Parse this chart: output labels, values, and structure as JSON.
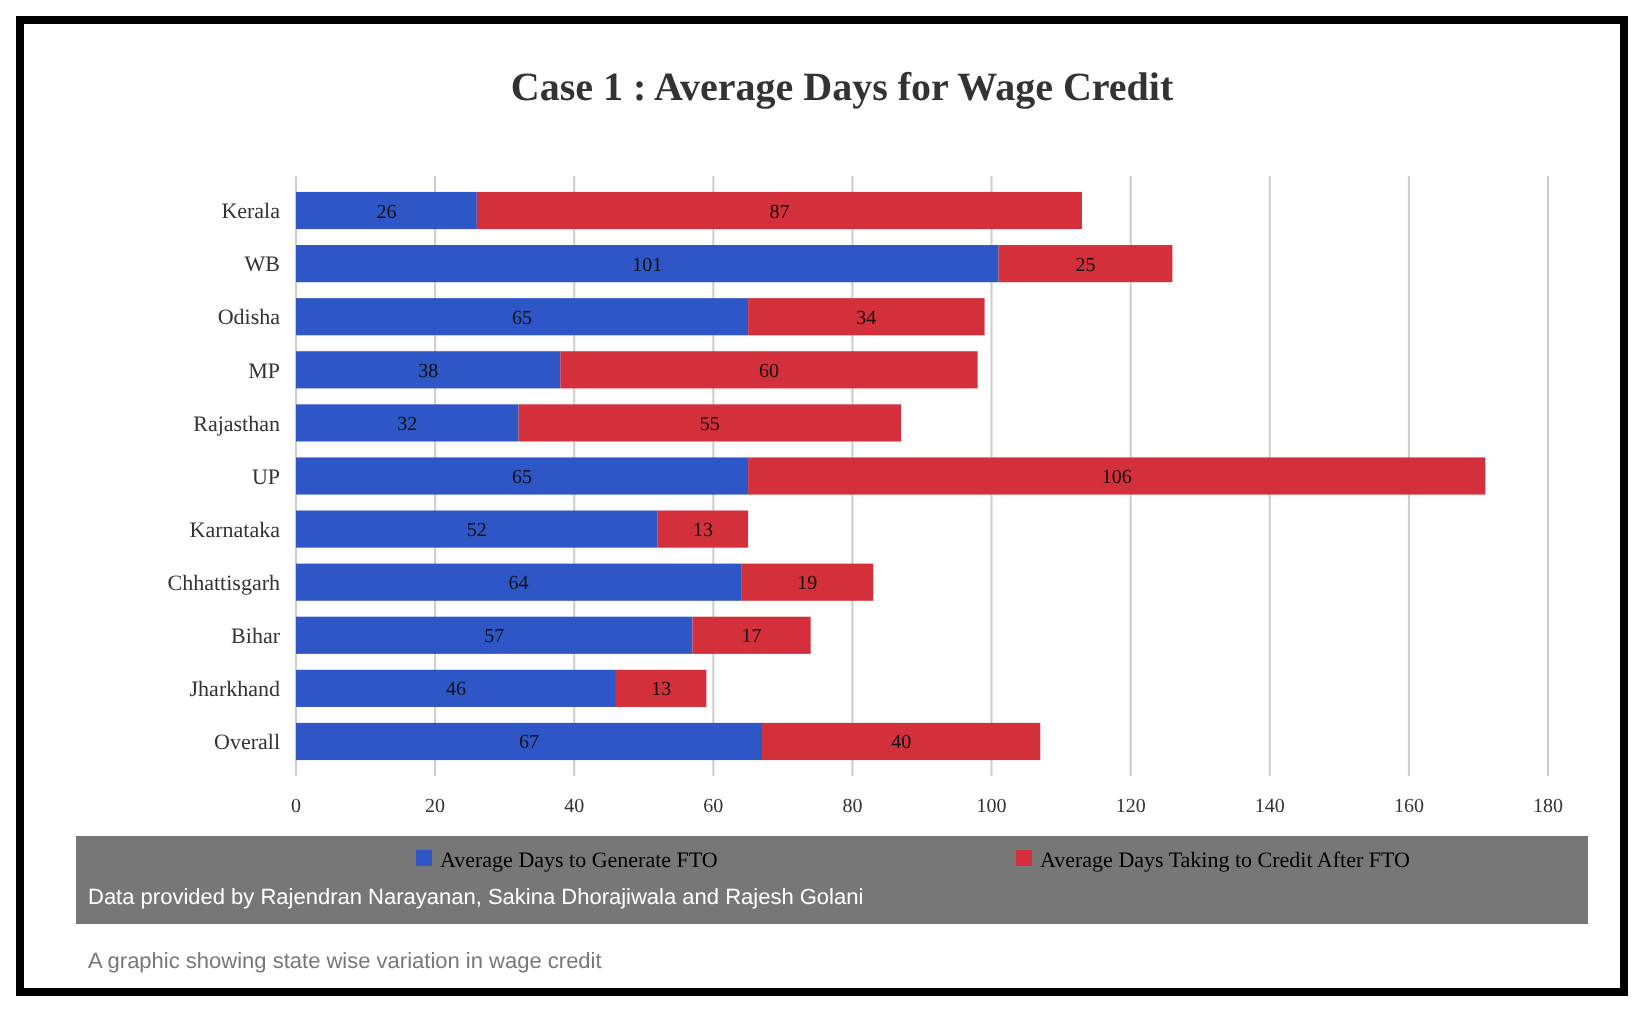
{
  "chart_data": {
    "type": "bar",
    "title": "Case 1 : Average Days for Wage Credit",
    "orientation": "horizontal",
    "stacked": true,
    "categories": [
      "Kerala",
      "WB",
      "Odisha",
      "MP",
      "Rajasthan",
      "UP",
      "Karnataka",
      "Chhattisgarh",
      "Bihar",
      "Jharkhand",
      "Overall"
    ],
    "series": [
      {
        "name": "Average Days to Generate FTO",
        "color": "#2f56c6",
        "values": [
          26,
          101,
          65,
          38,
          32,
          65,
          52,
          64,
          57,
          46,
          67
        ]
      },
      {
        "name": "Average Days Taking to Credit After FTO",
        "color": "#d3303c",
        "values": [
          87,
          25,
          34,
          60,
          55,
          106,
          13,
          19,
          17,
          13,
          40
        ]
      }
    ],
    "xlim": [
      0,
      180
    ],
    "xticks": [
      0,
      20,
      40,
      60,
      80,
      100,
      120,
      140,
      160,
      180
    ],
    "grid": "x",
    "legend": "bottom",
    "data_labels": true,
    "annotations": [
      "Data provided by Rajendran Narayanan, Sakina Dhorajiwala and Rajesh Golani",
      "A graphic showing state wise variation in wage credit"
    ]
  }
}
